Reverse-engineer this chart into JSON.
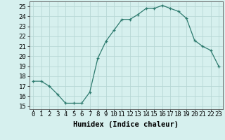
{
  "x": [
    0,
    1,
    2,
    3,
    4,
    5,
    6,
    7,
    8,
    9,
    10,
    11,
    12,
    13,
    14,
    15,
    16,
    17,
    18,
    19,
    20,
    21,
    22,
    23
  ],
  "y": [
    17.5,
    17.5,
    17.0,
    16.2,
    15.3,
    15.3,
    15.3,
    16.4,
    19.8,
    21.5,
    22.6,
    23.7,
    23.7,
    24.2,
    24.8,
    24.8,
    25.1,
    24.8,
    24.5,
    23.8,
    21.6,
    21.0,
    20.6,
    19.0
  ],
  "line_color": "#2d7a6e",
  "marker": "+",
  "bg_color": "#d6f0ee",
  "grid_color": "#b8d8d5",
  "ylabel_ticks": [
    15,
    16,
    17,
    18,
    19,
    20,
    21,
    22,
    23,
    24,
    25
  ],
  "xlabel": "Humidex (Indice chaleur)",
  "ylim": [
    14.7,
    25.5
  ],
  "xlim": [
    -0.5,
    23.5
  ],
  "tick_fontsize": 6.5,
  "xlabel_fontsize": 7.5
}
